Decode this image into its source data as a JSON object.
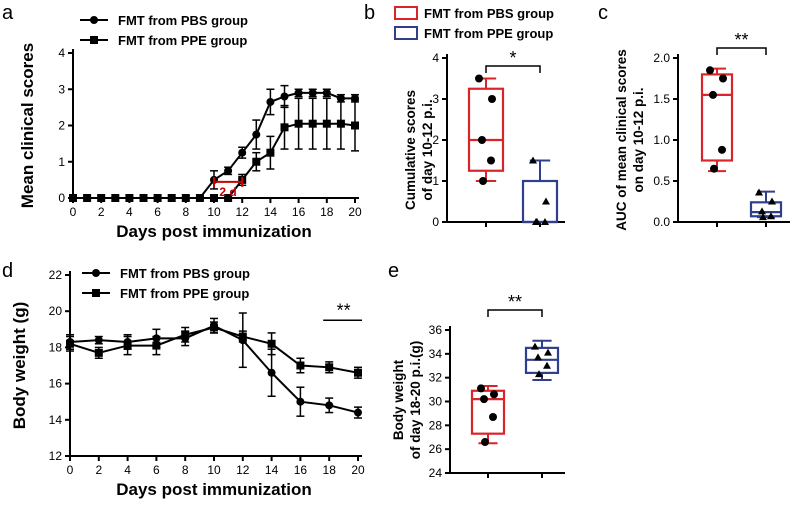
{
  "colors": {
    "ink": "#000000",
    "red": "#d9252a",
    "blue": "#303f8c",
    "annotation": "#cc0000"
  },
  "chart_data": [
    {
      "panel": "a",
      "type": "line",
      "title": "",
      "xlabel": "Days post immunization",
      "ylabel": "Mean clinical scores",
      "xlim": [
        0,
        20
      ],
      "ylim": [
        0,
        4
      ],
      "xticks": [
        0,
        2,
        4,
        6,
        8,
        10,
        12,
        14,
        16,
        18,
        20
      ],
      "yticks": [
        0,
        1,
        2,
        3,
        4
      ],
      "legend_position": "top-left",
      "annotation": {
        "text": "2 d",
        "x_from": 10,
        "x_to": 12,
        "y": 0.5
      },
      "series": [
        {
          "name": "FMT from PBS group",
          "marker": "circle",
          "x": [
            0,
            1,
            2,
            3,
            4,
            5,
            6,
            7,
            8,
            9,
            10,
            11,
            12,
            13,
            14,
            15,
            16,
            17,
            18,
            19,
            20
          ],
          "y": [
            0,
            0,
            0,
            0,
            0,
            0,
            0,
            0,
            0,
            0,
            0.5,
            0.75,
            1.25,
            1.75,
            2.65,
            2.8,
            2.9,
            2.9,
            2.9,
            2.75,
            2.75
          ],
          "err": [
            0,
            0,
            0,
            0,
            0,
            0,
            0,
            0,
            0,
            0,
            0.25,
            0.1,
            0.15,
            0.4,
            0.35,
            0.3,
            0.1,
            0.1,
            0.1,
            0.1,
            0.1
          ]
        },
        {
          "name": "FMT from PPE group",
          "marker": "square",
          "x": [
            0,
            1,
            2,
            3,
            4,
            5,
            6,
            7,
            8,
            9,
            10,
            11,
            12,
            13,
            14,
            15,
            16,
            17,
            18,
            19,
            20
          ],
          "y": [
            0,
            0,
            0,
            0,
            0,
            0,
            0,
            0,
            0,
            0,
            0,
            0,
            0.5,
            1,
            1.25,
            1.95,
            2.05,
            2.05,
            2.05,
            2.05,
            2
          ],
          "err": [
            0,
            0,
            0,
            0,
            0,
            0,
            0,
            0,
            0,
            0,
            0,
            0,
            0.15,
            0.25,
            0.45,
            0.6,
            0.7,
            0.7,
            0.7,
            0.7,
            0.7
          ]
        }
      ]
    },
    {
      "panel": "b",
      "type": "box",
      "ylabel": "Cumulative scores of day 10-12 p.i.",
      "ylim": [
        0,
        4
      ],
      "yticks": [
        0,
        1,
        2,
        3,
        4
      ],
      "legend_position": "top",
      "legend": [
        "FMT from PBS group",
        "FMT from PPE group"
      ],
      "significance": "*",
      "boxes": [
        {
          "name": "FMT from PBS group",
          "min": 1,
          "q1": 1.25,
          "median": 2,
          "q3": 3.25,
          "max": 3.5,
          "points": [
            3.5,
            3.0,
            2.0,
            1.5,
            1.0
          ],
          "marker": "circle"
        },
        {
          "name": "FMT from PPE group",
          "min": 0,
          "q1": 0,
          "median": 0,
          "q3": 1,
          "max": 1.5,
          "points": [
            1.5,
            0.5,
            0,
            0,
            0
          ],
          "marker": "triangle"
        }
      ]
    },
    {
      "panel": "c",
      "type": "box",
      "ylabel": "AUC of mean clinical scores on day 10-12 p.i.",
      "ylim": [
        0,
        2.0
      ],
      "yticks": [
        0.0,
        0.5,
        1.0,
        1.5,
        2.0
      ],
      "significance": "**",
      "boxes": [
        {
          "name": "FMT from PBS group",
          "min": 0.62,
          "q1": 0.75,
          "median": 1.55,
          "q3": 1.8,
          "max": 1.87,
          "points": [
            1.85,
            1.75,
            1.55,
            0.88,
            0.65
          ],
          "marker": "circle"
        },
        {
          "name": "FMT from PPE group",
          "min": 0.06,
          "q1": 0.07,
          "median": 0.12,
          "q3": 0.24,
          "max": 0.37,
          "points": [
            0.36,
            0.25,
            0.13,
            0.07,
            0.06
          ],
          "marker": "triangle"
        }
      ]
    },
    {
      "panel": "d",
      "type": "line",
      "xlabel": "Days post immunization",
      "ylabel": "Body weight (g)",
      "xlim": [
        0,
        20
      ],
      "ylim": [
        12,
        22
      ],
      "xticks": [
        0,
        2,
        4,
        6,
        8,
        10,
        12,
        14,
        16,
        18,
        20
      ],
      "yticks": [
        12,
        14,
        16,
        18,
        20,
        22
      ],
      "legend_position": "top-left",
      "significance": {
        "text": "**",
        "x_from": 18,
        "x_to": 20
      },
      "series": [
        {
          "name": "FMT from PBS group",
          "marker": "circle",
          "x": [
            0,
            2,
            4,
            6,
            8,
            10,
            12,
            14,
            16,
            18,
            20
          ],
          "y": [
            18.3,
            18.4,
            18.3,
            18.5,
            18.5,
            19.2,
            18.4,
            16.6,
            15.0,
            14.8,
            14.4
          ],
          "err": [
            0.4,
            0.2,
            0.4,
            0.5,
            0.4,
            0.4,
            1.5,
            1.3,
            0.8,
            0.4,
            0.3
          ]
        },
        {
          "name": "FMT from PPE group",
          "marker": "square",
          "x": [
            0,
            2,
            4,
            6,
            8,
            10,
            12,
            14,
            16,
            18,
            20
          ],
          "y": [
            18.2,
            17.7,
            18.1,
            18.1,
            18.7,
            19.1,
            18.6,
            18.2,
            17.0,
            16.9,
            16.6
          ],
          "err": [
            0.4,
            0.3,
            0.5,
            0.5,
            0.4,
            0.3,
            0.3,
            0.6,
            0.4,
            0.3,
            0.3
          ]
        }
      ]
    },
    {
      "panel": "e",
      "type": "box",
      "ylabel": "Body weight of day 18-20 p.i.(g)",
      "ylim": [
        24,
        36
      ],
      "yticks": [
        24,
        26,
        28,
        30,
        32,
        34,
        36
      ],
      "significance": "**",
      "boxes": [
        {
          "name": "FMT from PBS group",
          "min": 26.5,
          "q1": 27.3,
          "median": 30.2,
          "q3": 30.9,
          "max": 31.3,
          "points": [
            31.1,
            30.6,
            30.2,
            28.7,
            26.6
          ],
          "marker": "circle"
        },
        {
          "name": "FMT from PPE group",
          "min": 31.8,
          "q1": 32.4,
          "median": 33.5,
          "q3": 34.5,
          "max": 35.1,
          "points": [
            34.6,
            34.1,
            33.7,
            33.0,
            32.3
          ],
          "marker": "triangle"
        }
      ]
    }
  ]
}
